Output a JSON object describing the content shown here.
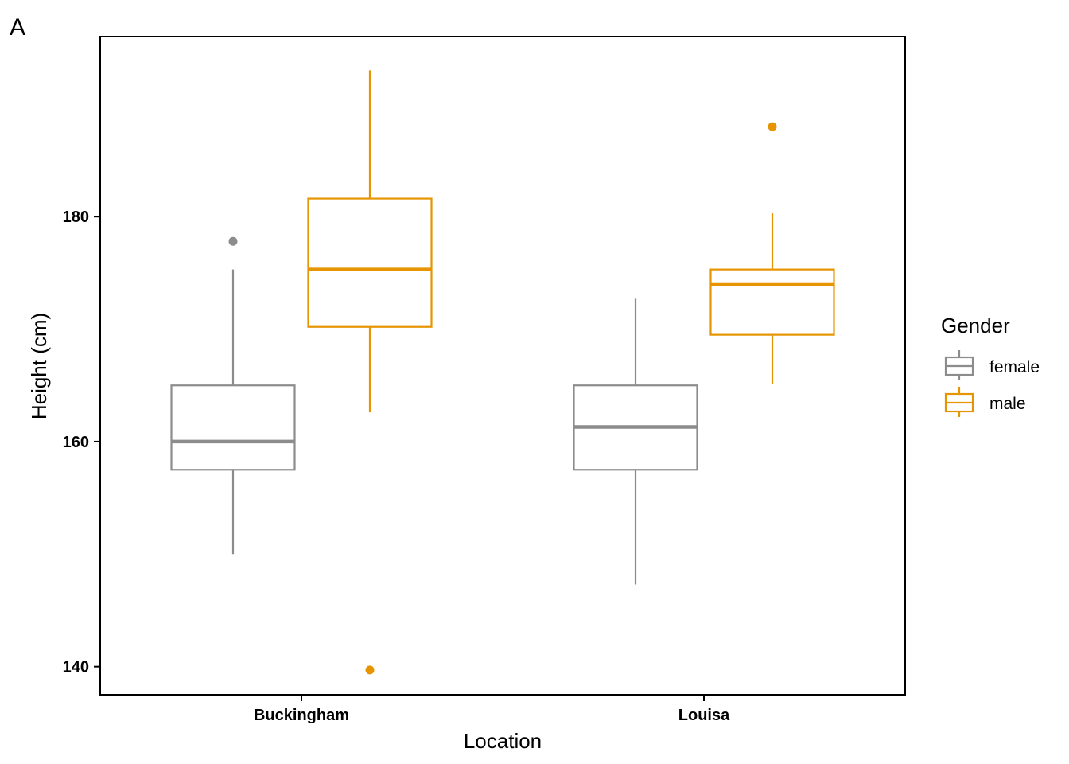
{
  "panel_tag": "A",
  "chart_data": {
    "type": "boxplot",
    "xlabel": "Location",
    "ylabel": "Height (cm)",
    "categories": [
      "Buckingham",
      "Louisa"
    ],
    "ylim": [
      137.5,
      196
    ],
    "yticks": [
      140,
      160,
      180
    ],
    "grid": false,
    "legend": {
      "title": "Gender",
      "position": "right"
    },
    "series": [
      {
        "name": "female",
        "color": "#8c8c8c",
        "boxes": [
          {
            "category": "Buckingham",
            "whisker_low": 150.0,
            "q1": 157.5,
            "median": 160.0,
            "q3": 165.0,
            "whisker_high": 175.3,
            "outliers": [
              177.8
            ]
          },
          {
            "category": "Louisa",
            "whisker_low": 147.3,
            "q1": 157.5,
            "median": 161.3,
            "q3": 165.0,
            "whisker_high": 172.7,
            "outliers": []
          }
        ]
      },
      {
        "name": "male",
        "color": "#e69400",
        "boxes": [
          {
            "category": "Buckingham",
            "whisker_low": 162.6,
            "q1": 170.2,
            "median": 175.3,
            "q3": 181.6,
            "whisker_high": 193.0,
            "outliers": [
              139.7
            ]
          },
          {
            "category": "Louisa",
            "whisker_low": 165.1,
            "q1": 169.5,
            "median": 174.0,
            "q3": 175.3,
            "whisker_high": 180.3,
            "outliers": [
              188.0
            ]
          }
        ]
      }
    ]
  }
}
